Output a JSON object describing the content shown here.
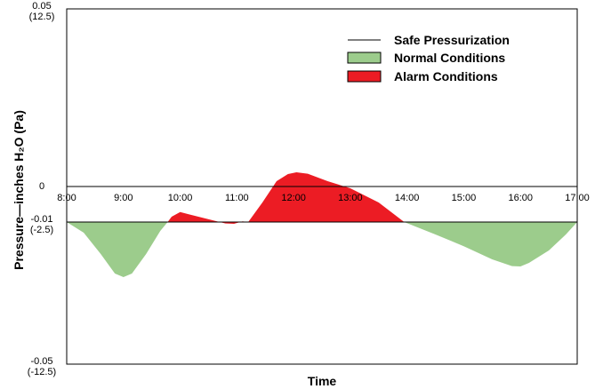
{
  "chart_data": {
    "type": "area",
    "xlabel": "Time",
    "ylabel": "Pressure—inches H₂O (Pa)",
    "xlim": [
      8,
      17
    ],
    "ylim": [
      -0.05,
      0.05
    ],
    "x_ticks": [
      {
        "value": 8,
        "label": "8:00"
      },
      {
        "value": 9,
        "label": "9:00"
      },
      {
        "value": 10,
        "label": "10:00"
      },
      {
        "value": 11,
        "label": "11:00"
      },
      {
        "value": 12,
        "label": "12:00"
      },
      {
        "value": 13,
        "label": "13:00"
      },
      {
        "value": 14,
        "label": "14:00"
      },
      {
        "value": 15,
        "label": "15:00"
      },
      {
        "value": 16,
        "label": "16:00"
      },
      {
        "value": 17,
        "label": "17:00"
      }
    ],
    "y_ticks": [
      {
        "value": 0.05,
        "label": "0.05",
        "sublabel": "(12.5)"
      },
      {
        "value": 0,
        "label": "0",
        "sublabel": ""
      },
      {
        "value": -0.01,
        "label": "-0.01",
        "sublabel": "(-2.5)"
      },
      {
        "value": -0.05,
        "label": "-0.05",
        "sublabel": "(-12.5)"
      }
    ],
    "safe_pressurization": -0.01,
    "pressure_curve": [
      [
        8.0,
        -0.01
      ],
      [
        8.3,
        -0.013
      ],
      [
        8.6,
        -0.019
      ],
      [
        8.85,
        -0.0245
      ],
      [
        9.0,
        -0.0255
      ],
      [
        9.15,
        -0.0245
      ],
      [
        9.4,
        -0.019
      ],
      [
        9.65,
        -0.0125
      ],
      [
        9.78,
        -0.01
      ],
      [
        9.85,
        -0.0085
      ],
      [
        10.0,
        -0.0072
      ],
      [
        10.15,
        -0.0078
      ],
      [
        10.4,
        -0.0088
      ],
      [
        10.65,
        -0.0098
      ],
      [
        10.8,
        -0.0104
      ],
      [
        10.95,
        -0.0105
      ],
      [
        11.1,
        -0.0098
      ],
      [
        11.2,
        -0.01
      ],
      [
        11.45,
        -0.0045
      ],
      [
        11.7,
        0.0015
      ],
      [
        11.9,
        0.0035
      ],
      [
        12.05,
        0.004
      ],
      [
        12.25,
        0.0036
      ],
      [
        12.6,
        0.0015
      ],
      [
        13.0,
        -0.0005
      ],
      [
        13.5,
        -0.0045
      ],
      [
        13.95,
        -0.01
      ],
      [
        14.5,
        -0.0135
      ],
      [
        15.0,
        -0.0168
      ],
      [
        15.5,
        -0.0205
      ],
      [
        15.85,
        -0.0224
      ],
      [
        16.0,
        -0.0225
      ],
      [
        16.15,
        -0.0215
      ],
      [
        16.5,
        -0.018
      ],
      [
        16.8,
        -0.0135
      ],
      [
        17.0,
        -0.01
      ]
    ],
    "legend": {
      "position": "top-right",
      "items": [
        {
          "name": "Safe Pressurization",
          "kind": "line",
          "color": "#000000"
        },
        {
          "name": "Normal Conditions",
          "kind": "fill",
          "color": "#9ccc8c"
        },
        {
          "name": "Alarm Conditions",
          "kind": "fill",
          "color": "#ec1c24"
        }
      ]
    },
    "colors": {
      "normal": "#9ccc8c",
      "alarm": "#ec1c24",
      "line": "#000000"
    }
  }
}
